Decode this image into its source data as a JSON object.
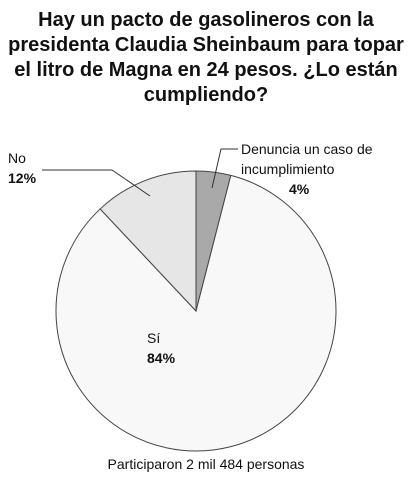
{
  "chart_data": {
    "type": "pie",
    "title": "Hay un pacto de gasolineros con la presidenta Claudia Sheinbaum para topar el litro de Magna en 24 pesos. ¿Lo están cumpliendo?",
    "categories": [
      "Denuncia un caso de incumplimiento",
      "Sí",
      "No"
    ],
    "values": [
      4,
      84,
      12
    ],
    "value_labels": [
      "4%",
      "84%",
      "12%"
    ],
    "colors": [
      "#a9a9a9",
      "#f8f8f8",
      "#e6e6e6"
    ],
    "note": "Participaron 2 mil 484 personas"
  }
}
